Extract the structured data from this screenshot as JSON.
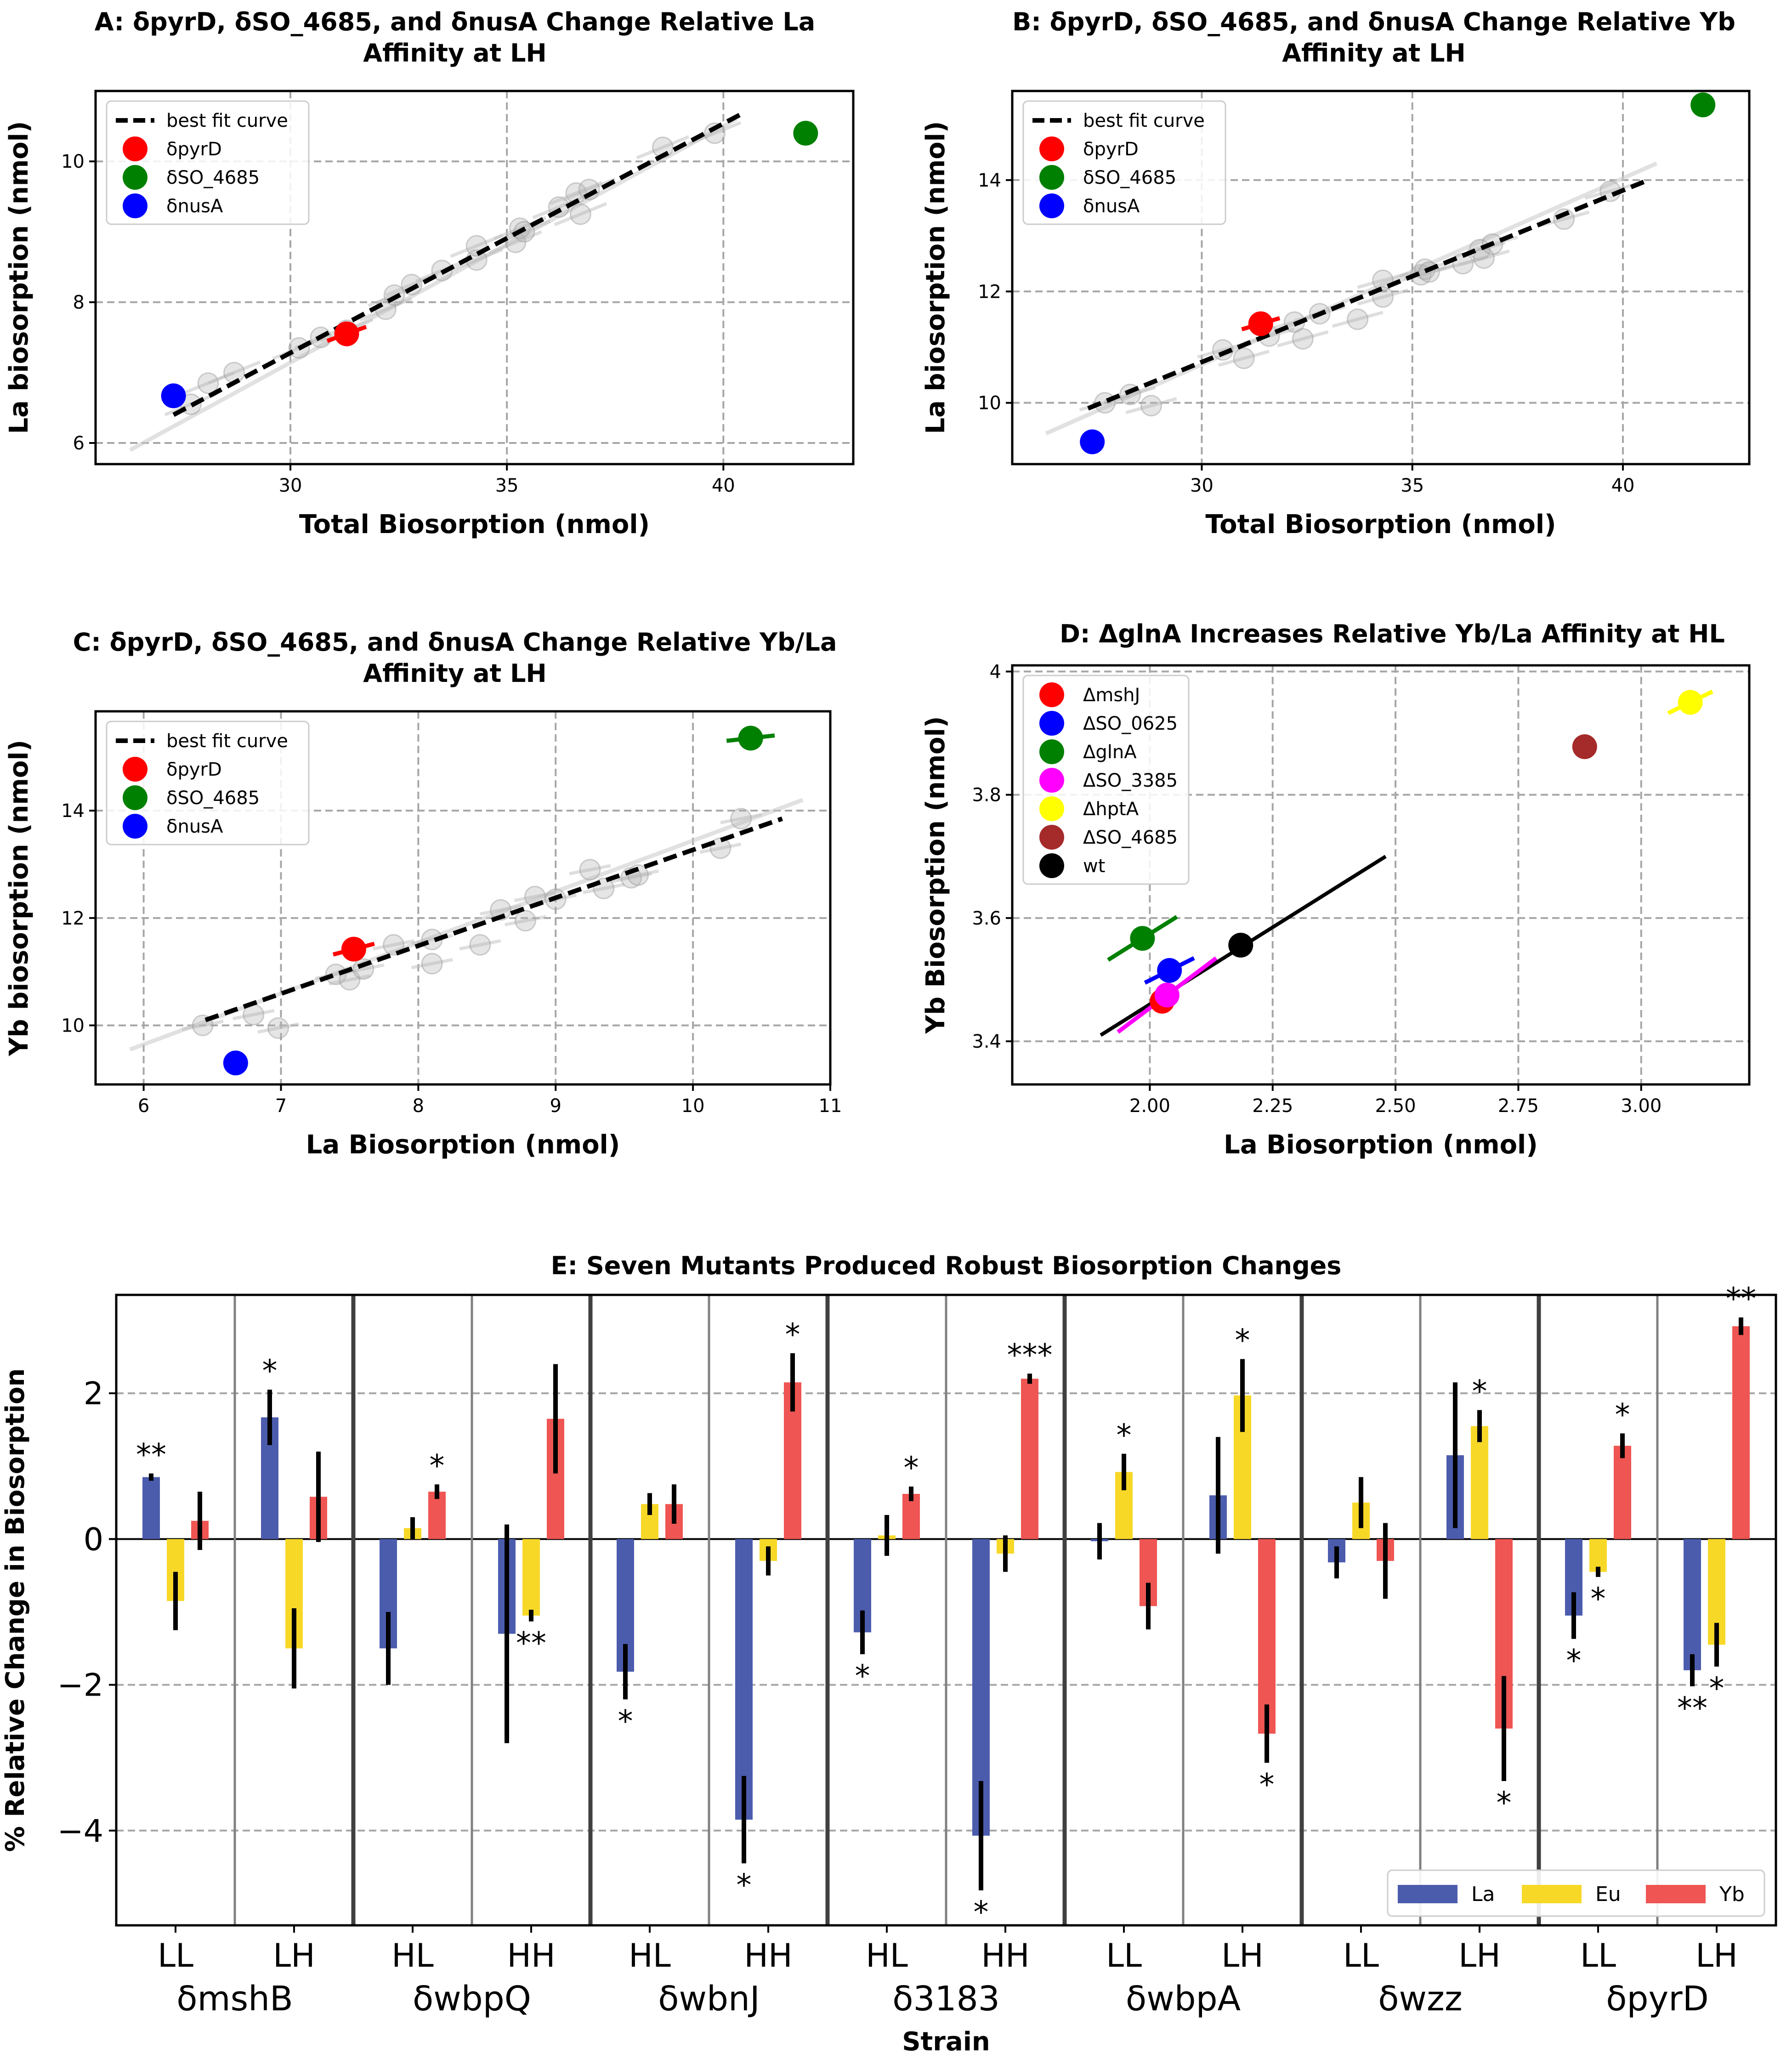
{
  "legend_labels": {
    "fit": "best fit curve",
    "pyrD": "δpyrD",
    "so4685": "δSO_4685",
    "nusA": "δnusA"
  },
  "chart_data": [
    {
      "id": "A",
      "type": "scatter",
      "title": "A: δpyrD, δSO_4685, and δnusA Change Relative La Affinity at LH",
      "title_lines": [
        "A: δpyrD, δSO_4685, and δnusA Change Relative La",
        "Affinity at LH"
      ],
      "xlabel": "Total Biosorption (nmol)",
      "ylabel": "La biosorption (nmol)",
      "xlim": [
        25.5,
        43.0
      ],
      "ylim": [
        5.7,
        11.0
      ],
      "xticks": [
        30,
        35,
        40
      ],
      "yticks": [
        6,
        8,
        10
      ],
      "grid": true,
      "legend_position": "upper left",
      "fit_line": {
        "x": [
          27.3,
          40.5
        ],
        "y": [
          6.4,
          10.7
        ]
      },
      "background_points": [
        {
          "x": 27.7,
          "y": 6.55,
          "dx": 1.2,
          "dy": 0.3
        },
        {
          "x": 28.1,
          "y": 6.85,
          "dx": 1.2,
          "dy": 0.3
        },
        {
          "x": 28.7,
          "y": 7.0,
          "dx": 1.2,
          "dy": 0.3
        },
        {
          "x": 30.2,
          "y": 7.35,
          "dx": 1.2,
          "dy": 0.3
        },
        {
          "x": 30.7,
          "y": 7.5,
          "dx": 1.2,
          "dy": 0.3
        },
        {
          "x": 31.3,
          "y": 7.6,
          "dx": 1.2,
          "dy": 0.3
        },
        {
          "x": 32.2,
          "y": 7.9,
          "dx": 1.2,
          "dy": 0.3
        },
        {
          "x": 32.4,
          "y": 8.1,
          "dx": 1.2,
          "dy": 0.3
        },
        {
          "x": 32.8,
          "y": 8.25,
          "dx": 1.2,
          "dy": 0.3
        },
        {
          "x": 33.5,
          "y": 8.45,
          "dx": 1.2,
          "dy": 0.3
        },
        {
          "x": 34.3,
          "y": 8.6,
          "dx": 1.2,
          "dy": 0.3
        },
        {
          "x": 34.3,
          "y": 8.8,
          "dx": 1.2,
          "dy": 0.3
        },
        {
          "x": 35.2,
          "y": 8.85,
          "dx": 1.2,
          "dy": 0.3
        },
        {
          "x": 35.3,
          "y": 9.05,
          "dx": 1.2,
          "dy": 0.3
        },
        {
          "x": 35.4,
          "y": 9.0,
          "dx": 1.2,
          "dy": 0.3
        },
        {
          "x": 36.2,
          "y": 9.35,
          "dx": 1.2,
          "dy": 0.3
        },
        {
          "x": 36.6,
          "y": 9.55,
          "dx": 1.2,
          "dy": 0.3
        },
        {
          "x": 36.7,
          "y": 9.25,
          "dx": 1.2,
          "dy": 0.3
        },
        {
          "x": 36.9,
          "y": 9.6,
          "dx": 1.2,
          "dy": 0.3
        },
        {
          "x": 38.6,
          "y": 10.2,
          "dx": 1.2,
          "dy": 0.3
        },
        {
          "x": 39.8,
          "y": 10.4,
          "dx": 1.2,
          "dy": 0.3
        }
      ],
      "background_line": {
        "x": [
          26.3,
          40.3
        ],
        "y": [
          5.9,
          10.6
        ]
      },
      "series": [
        {
          "name": "δpyrD",
          "color": "#ff0000",
          "x": 31.3,
          "y": 7.55,
          "dx": 0.9,
          "dy": 0.2
        },
        {
          "name": "δSO_4685",
          "color": "#008000",
          "x": 41.9,
          "y": 10.4,
          "dx": 0.3,
          "dy": 0.3
        },
        {
          "name": "δnusA",
          "color": "#0000ff",
          "x": 27.3,
          "y": 6.67,
          "dx": 0.4,
          "dy": 0.2
        }
      ]
    },
    {
      "id": "B",
      "type": "scatter",
      "title": "B: δpyrD, δSO_4685, and δnusA Change Relative Yb Affinity at LH",
      "title_lines": [
        "B: δpyrD, δSO_4685, and δnusA Change Relative Yb",
        "Affinity at LH"
      ],
      "xlabel": "Total Biosorption (nmol)",
      "ylabel": "La biosorption (nmol)",
      "xlim": [
        25.5,
        43.0
      ],
      "ylim": [
        8.9,
        15.6
      ],
      "xticks": [
        30,
        35,
        40
      ],
      "yticks": [
        10,
        12,
        14
      ],
      "grid": true,
      "legend_position": "upper left",
      "fit_line": {
        "x": [
          27.3,
          40.6
        ],
        "y": [
          9.9,
          14.0
        ]
      },
      "background_points": [
        {
          "x": 27.7,
          "y": 10.0,
          "dx": 1.2,
          "dy": 0.25
        },
        {
          "x": 28.3,
          "y": 10.15,
          "dx": 1.2,
          "dy": 0.25
        },
        {
          "x": 28.8,
          "y": 9.95,
          "dx": 1.2,
          "dy": 0.25
        },
        {
          "x": 30.5,
          "y": 10.95,
          "dx": 1.2,
          "dy": 0.25
        },
        {
          "x": 31.0,
          "y": 10.8,
          "dx": 1.2,
          "dy": 0.25
        },
        {
          "x": 31.6,
          "y": 11.2,
          "dx": 1.2,
          "dy": 0.25
        },
        {
          "x": 32.2,
          "y": 11.45,
          "dx": 1.2,
          "dy": 0.25
        },
        {
          "x": 32.4,
          "y": 11.15,
          "dx": 1.2,
          "dy": 0.25
        },
        {
          "x": 32.8,
          "y": 11.6,
          "dx": 1.2,
          "dy": 0.25
        },
        {
          "x": 33.7,
          "y": 11.5,
          "dx": 1.2,
          "dy": 0.25
        },
        {
          "x": 34.3,
          "y": 11.9,
          "dx": 1.2,
          "dy": 0.25
        },
        {
          "x": 34.3,
          "y": 12.2,
          "dx": 1.2,
          "dy": 0.25
        },
        {
          "x": 35.2,
          "y": 12.3,
          "dx": 1.2,
          "dy": 0.25
        },
        {
          "x": 35.3,
          "y": 12.4,
          "dx": 1.2,
          "dy": 0.25
        },
        {
          "x": 35.4,
          "y": 12.35,
          "dx": 1.2,
          "dy": 0.25
        },
        {
          "x": 36.2,
          "y": 12.5,
          "dx": 1.2,
          "dy": 0.25
        },
        {
          "x": 36.6,
          "y": 12.75,
          "dx": 1.2,
          "dy": 0.25
        },
        {
          "x": 36.7,
          "y": 12.6,
          "dx": 1.2,
          "dy": 0.25
        },
        {
          "x": 36.9,
          "y": 12.85,
          "dx": 1.2,
          "dy": 0.25
        },
        {
          "x": 38.6,
          "y": 13.3,
          "dx": 1.2,
          "dy": 0.25
        },
        {
          "x": 39.7,
          "y": 13.8,
          "dx": 1.2,
          "dy": 0.25
        }
      ],
      "background_line": {
        "x": [
          26.3,
          40.8
        ],
        "y": [
          9.45,
          14.3
        ]
      },
      "series": [
        {
          "name": "δpyrD",
          "color": "#ff0000",
          "x": 31.4,
          "y": 11.42,
          "dx": 0.9,
          "dy": 0.2
        },
        {
          "name": "δSO_4685",
          "color": "#008000",
          "x": 41.9,
          "y": 15.35,
          "dx": 0.3,
          "dy": 0.1
        },
        {
          "name": "δnusA",
          "color": "#0000ff",
          "x": 27.4,
          "y": 9.3,
          "dx": 0.3,
          "dy": 0.05
        }
      ]
    },
    {
      "id": "C",
      "type": "scatter",
      "title": "C: δpyrD, δSO_4685, and δnusA Change Relative Yb/La Affinity at LH",
      "title_lines": [
        "C: δpyrD, δSO_4685, and δnusA Change Relative Yb/La",
        "Affinity at LH"
      ],
      "xlabel": "La Biosorption (nmol)",
      "ylabel": "Yb biosorption (nmol)",
      "xlim": [
        5.65,
        11.0
      ],
      "ylim": [
        8.9,
        15.85
      ],
      "xticks": [
        6,
        7,
        8,
        9,
        10,
        11
      ],
      "yticks": [
        10,
        12,
        14
      ],
      "grid": true,
      "legend_position": "upper left",
      "fit_line": {
        "x": [
          6.45,
          10.65
        ],
        "y": [
          10.1,
          13.85
        ]
      },
      "background_points": [
        {
          "x": 6.43,
          "y": 10.0,
          "dx": 0.3,
          "dy": 0.15
        },
        {
          "x": 6.8,
          "y": 10.2,
          "dx": 0.3,
          "dy": 0.15
        },
        {
          "x": 6.98,
          "y": 9.95,
          "dx": 0.3,
          "dy": 0.15
        },
        {
          "x": 7.4,
          "y": 10.95,
          "dx": 0.3,
          "dy": 0.15
        },
        {
          "x": 7.5,
          "y": 10.85,
          "dx": 0.3,
          "dy": 0.15
        },
        {
          "x": 7.6,
          "y": 11.05,
          "dx": 0.3,
          "dy": 0.15
        },
        {
          "x": 7.82,
          "y": 11.5,
          "dx": 0.3,
          "dy": 0.15
        },
        {
          "x": 8.1,
          "y": 11.6,
          "dx": 0.3,
          "dy": 0.15
        },
        {
          "x": 8.1,
          "y": 11.15,
          "dx": 0.3,
          "dy": 0.15
        },
        {
          "x": 8.45,
          "y": 11.5,
          "dx": 0.3,
          "dy": 0.15
        },
        {
          "x": 8.6,
          "y": 12.15,
          "dx": 0.3,
          "dy": 0.15
        },
        {
          "x": 8.78,
          "y": 11.95,
          "dx": 0.3,
          "dy": 0.15
        },
        {
          "x": 8.85,
          "y": 12.4,
          "dx": 0.3,
          "dy": 0.15
        },
        {
          "x": 9.0,
          "y": 12.35,
          "dx": 0.3,
          "dy": 0.15
        },
        {
          "x": 9.25,
          "y": 12.9,
          "dx": 0.3,
          "dy": 0.15
        },
        {
          "x": 9.35,
          "y": 12.55,
          "dx": 0.3,
          "dy": 0.15
        },
        {
          "x": 9.55,
          "y": 12.75,
          "dx": 0.3,
          "dy": 0.15
        },
        {
          "x": 9.6,
          "y": 12.8,
          "dx": 0.3,
          "dy": 0.15
        },
        {
          "x": 10.2,
          "y": 13.3,
          "dx": 0.3,
          "dy": 0.15
        },
        {
          "x": 10.35,
          "y": 13.85,
          "dx": 0.3,
          "dy": 0.15
        }
      ],
      "background_line": {
        "x": [
          5.9,
          10.8
        ],
        "y": [
          9.55,
          14.2
        ]
      },
      "series": [
        {
          "name": "δpyrD",
          "color": "#ff0000",
          "x": 7.53,
          "y": 11.42,
          "dx": 0.3,
          "dy": 0.2
        },
        {
          "name": "δSO_4685",
          "color": "#008000",
          "x": 10.42,
          "y": 15.35,
          "dx": 0.35,
          "dy": 0.1
        },
        {
          "name": "δnusA",
          "color": "#0000ff",
          "x": 6.67,
          "y": 9.3,
          "dx": 0.15,
          "dy": 0.02
        }
      ]
    },
    {
      "id": "D",
      "type": "scatter",
      "title": "D: ΔglnA Increases Relative Yb/La Affinity at HL",
      "title_lines": [
        "D: ΔglnA Increases Relative Yb/La Affinity at HL"
      ],
      "xlabel": "La Biosorption (nmol)",
      "ylabel": "Yb Biosorption (nmol)",
      "xlim": [
        1.72,
        3.22
      ],
      "ylim": [
        3.33,
        4.01
      ],
      "xticks": [
        2.0,
        2.25,
        2.5,
        2.75,
        3.0
      ],
      "xtick_labels": [
        "2.00",
        "2.25",
        "2.50",
        "2.75",
        "3.00"
      ],
      "yticks": [
        3.4,
        3.6,
        3.8,
        4.0
      ],
      "grid": true,
      "legend_position": "upper left",
      "series": [
        {
          "name": "ΔmshJ",
          "color": "#ff0000",
          "x": 2.025,
          "y": 3.465,
          "dx": 0.04,
          "dy": 0.01
        },
        {
          "name": "ΔSO_0625",
          "color": "#0000ff",
          "x": 2.04,
          "y": 3.515,
          "dx": 0.1,
          "dy": 0.04
        },
        {
          "name": "ΔglnA",
          "color": "#008000",
          "x": 1.985,
          "y": 3.567,
          "dx": 0.14,
          "dy": 0.07
        },
        {
          "name": "ΔSO_3385",
          "color": "#ff00ff",
          "x": 2.035,
          "y": 3.475,
          "dx": 0.2,
          "dy": 0.12
        },
        {
          "name": "ΔhptA",
          "color": "#ffff00",
          "x": 3.1,
          "y": 3.95,
          "dx": 0.09,
          "dy": 0.035
        },
        {
          "name": "ΔSO_4685",
          "color": "#a52a2a",
          "x": 2.885,
          "y": 3.878,
          "dx": 0.04,
          "dy": 0.01
        },
        {
          "name": "wt",
          "color": "#000000",
          "x": 2.185,
          "y": 3.556,
          "dx": 0.0,
          "dy": 0.0
        }
      ],
      "wt_line": {
        "x": [
          1.9,
          2.48
        ],
        "y": [
          3.41,
          3.7
        ]
      }
    },
    {
      "id": "E",
      "type": "bar",
      "title": "E: Seven Mutants Produced Robust Biosorption Changes",
      "xlabel": "Strain",
      "ylabel": "% Relative Change in Biosorption",
      "ylim": [
        -5.3,
        3.35
      ],
      "yticks": [
        -4,
        -2,
        0,
        2
      ],
      "grid": true,
      "legend_position": "lower right",
      "series_names": [
        "La",
        "Eu",
        "Yb"
      ],
      "series_colors": [
        "#4c5cad",
        "#f7d827",
        "#ef5552"
      ],
      "strains": [
        "δmshB",
        "δwbpQ",
        "δwbnJ",
        "δ3183",
        "δwbpA",
        "δwzz",
        "δpyrD"
      ],
      "groups": [
        {
          "label": "LL",
          "values": [
            0.85,
            -0.85,
            0.25
          ],
          "errors": [
            0.05,
            0.4,
            0.4
          ],
          "stars": [
            "**",
            "",
            ""
          ]
        },
        {
          "label": "LH",
          "values": [
            1.67,
            -1.5,
            0.58
          ],
          "errors": [
            0.38,
            0.55,
            0.62
          ],
          "stars": [
            "*",
            "",
            ""
          ]
        },
        {
          "label": "HL",
          "values": [
            -1.5,
            0.15,
            0.65
          ],
          "errors": [
            0.5,
            0.15,
            0.1
          ],
          "stars": [
            "",
            "",
            "*"
          ]
        },
        {
          "label": "HH",
          "values": [
            -1.3,
            -1.05,
            1.65
          ],
          "errors": [
            1.5,
            0.08,
            0.75
          ],
          "stars": [
            "",
            "**",
            ""
          ]
        },
        {
          "label": "HL",
          "values": [
            -1.82,
            0.48,
            0.48
          ],
          "errors": [
            0.38,
            0.15,
            0.27
          ],
          "stars": [
            "*",
            "",
            ""
          ]
        },
        {
          "label": "HH",
          "values": [
            -3.85,
            -0.3,
            2.15
          ],
          "errors": [
            0.6,
            0.2,
            0.4
          ],
          "stars": [
            "*",
            "",
            "*"
          ]
        },
        {
          "label": "HL",
          "values": [
            -1.28,
            0.05,
            0.62
          ],
          "errors": [
            0.3,
            0.28,
            0.1
          ],
          "stars": [
            "*",
            "",
            "*"
          ]
        },
        {
          "label": "HH",
          "values": [
            -4.07,
            -0.2,
            2.2
          ],
          "errors": [
            0.75,
            0.25,
            0.07
          ],
          "stars": [
            "*",
            "",
            "***"
          ]
        },
        {
          "label": "LL",
          "values": [
            -0.03,
            0.92,
            -0.92
          ],
          "errors": [
            0.25,
            0.25,
            0.32
          ],
          "stars": [
            "",
            "*",
            ""
          ]
        },
        {
          "label": "LH",
          "values": [
            0.6,
            1.97,
            -2.67
          ],
          "errors": [
            0.8,
            0.5,
            0.4
          ],
          "stars": [
            "",
            "*",
            "*"
          ]
        },
        {
          "label": "LL",
          "values": [
            -0.32,
            0.5,
            -0.3
          ],
          "errors": [
            0.22,
            0.35,
            0.52
          ],
          "stars": [
            "",
            "",
            ""
          ]
        },
        {
          "label": "LH",
          "values": [
            1.15,
            1.55,
            -2.6
          ],
          "errors": [
            1.0,
            0.22,
            0.72
          ],
          "stars": [
            "",
            "*",
            "*"
          ]
        },
        {
          "label": "LL",
          "values": [
            -1.05,
            -0.45,
            1.28
          ],
          "errors": [
            0.32,
            0.07,
            0.17
          ],
          "stars": [
            "*",
            "*",
            "*"
          ]
        },
        {
          "label": "LH",
          "values": [
            -1.8,
            -1.45,
            2.92
          ],
          "errors": [
            0.22,
            0.3,
            0.12
          ],
          "stars": [
            "**",
            "*",
            "**"
          ]
        }
      ]
    }
  ]
}
